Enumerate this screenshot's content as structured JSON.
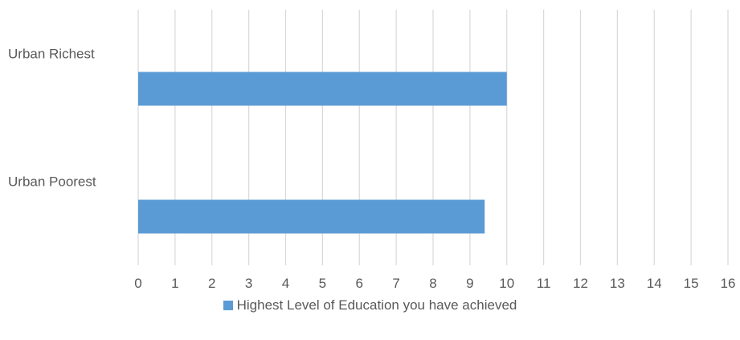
{
  "colors": {
    "bar": "#5b9bd5",
    "grid": "#d9d9d9",
    "text": "#595959"
  },
  "chart_data": {
    "type": "bar",
    "orientation": "horizontal",
    "categories": [
      "Urban Richest",
      "Urban Poorest"
    ],
    "series": [
      {
        "name": "Highest Level of Education you have achieved",
        "values": [
          10,
          9.4
        ]
      }
    ],
    "title": "",
    "xlabel": "",
    "ylabel": "",
    "xlim": [
      0,
      16
    ],
    "x_ticks": [
      "0",
      "1",
      "2",
      "3",
      "4",
      "5",
      "6",
      "7",
      "8",
      "9",
      "10",
      "11",
      "12",
      "13",
      "14",
      "15",
      "16"
    ],
    "grid": "vertical",
    "legend_position": "bottom"
  }
}
